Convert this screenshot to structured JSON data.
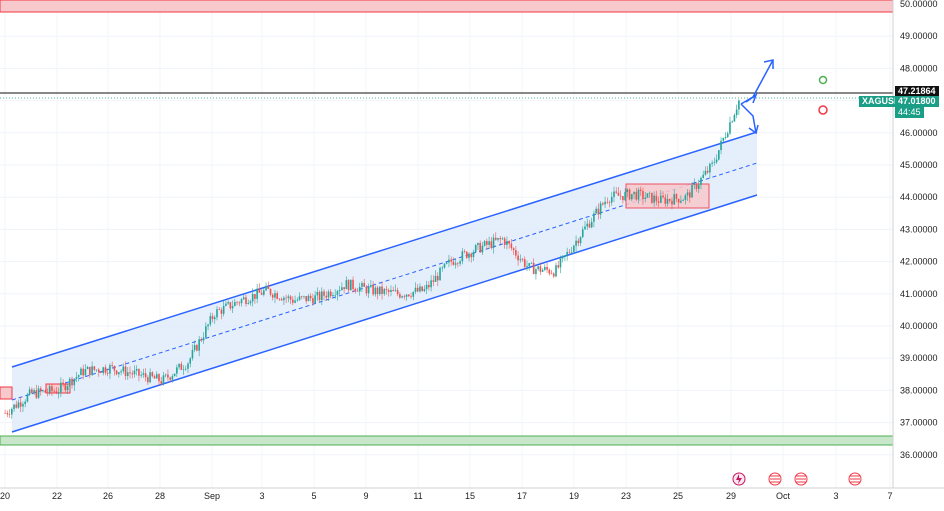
{
  "chart_data": {
    "type": "candlestick",
    "symbol": "XAGUSD",
    "last_price_line": "47.21864",
    "current_price": "47.01800",
    "countdown": "44:45",
    "ylim": [
      35.6,
      50.1
    ],
    "y_ticks": [
      "50.00000",
      "49.00000",
      "48.00000",
      "47.00000",
      "46.00000",
      "45.00000",
      "44.00000",
      "43.00000",
      "42.00000",
      "41.00000",
      "40.00000",
      "39.00000",
      "38.00000",
      "37.00000",
      "36.00000"
    ],
    "x_ticks": [
      "20",
      "22",
      "26",
      "28",
      "Sep",
      "3",
      "5",
      "9",
      "11",
      "15",
      "17",
      "19",
      "23",
      "25",
      "29",
      "Oct",
      "3",
      "7"
    ],
    "approx_close_path": [
      {
        "date": "Aug 20",
        "value": 37.3
      },
      {
        "date": "Aug 21",
        "value": 37.9
      },
      {
        "date": "Aug 22",
        "value": 38.0
      },
      {
        "date": "Aug 25",
        "value": 38.6
      },
      {
        "date": "Aug 26",
        "value": 38.7
      },
      {
        "date": "Aug 27",
        "value": 38.5
      },
      {
        "date": "Aug 28",
        "value": 38.3
      },
      {
        "date": "Aug 29",
        "value": 38.9
      },
      {
        "date": "Sep 1",
        "value": 40.4
      },
      {
        "date": "Sep 2",
        "value": 40.8
      },
      {
        "date": "Sep 3",
        "value": 41.1
      },
      {
        "date": "Sep 4",
        "value": 40.8
      },
      {
        "date": "Sep 5",
        "value": 40.9
      },
      {
        "date": "Sep 8",
        "value": 41.3
      },
      {
        "date": "Sep 9",
        "value": 41.1
      },
      {
        "date": "Sep 10",
        "value": 41.0
      },
      {
        "date": "Sep 11",
        "value": 41.1
      },
      {
        "date": "Sep 12",
        "value": 42.0
      },
      {
        "date": "Sep 15",
        "value": 42.4
      },
      {
        "date": "Sep 16",
        "value": 42.7
      },
      {
        "date": "Sep 17",
        "value": 41.8
      },
      {
        "date": "Sep 18",
        "value": 41.7
      },
      {
        "date": "Sep 19",
        "value": 42.9
      },
      {
        "date": "Sep 22",
        "value": 44.0
      },
      {
        "date": "Sep 23",
        "value": 44.1
      },
      {
        "date": "Sep 24",
        "value": 43.9
      },
      {
        "date": "Sep 25",
        "value": 44.0
      },
      {
        "date": "Sep 26",
        "value": 45.0
      },
      {
        "date": "Sep 29",
        "value": 47.0
      }
    ],
    "zones": [
      {
        "type": "resistance",
        "from": 49.8,
        "to": 50.2
      },
      {
        "type": "support",
        "from": 36.4,
        "to": 36.6
      }
    ],
    "channel": {
      "upper": [
        {
          "date": "Aug 20",
          "value": 38.8
        },
        {
          "date": "Sep 29",
          "value": 45.9
        }
      ],
      "lower": [
        {
          "date": "Aug 20",
          "value": 36.8
        },
        {
          "date": "Sep 29",
          "value": 44.1
        }
      ]
    },
    "colors": {
      "up": "#26a69a",
      "down": "#ef5350",
      "channel": "#2962ff",
      "support": "#4caf50",
      "resistance": "#f23645"
    }
  }
}
